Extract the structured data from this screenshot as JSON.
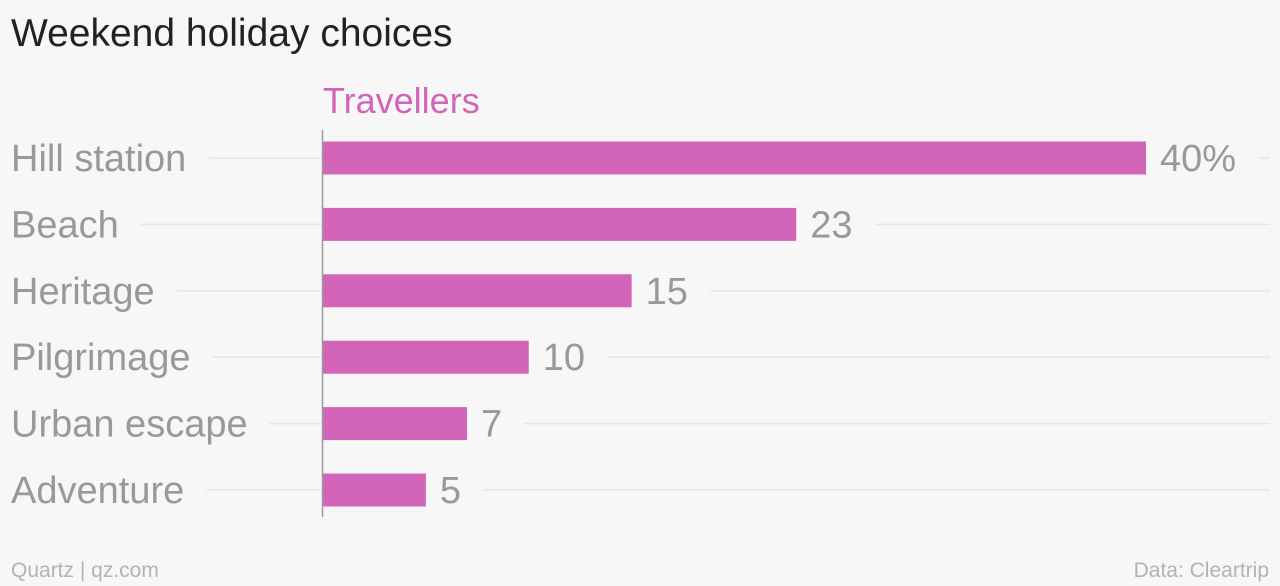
{
  "title": "Weekend holiday choices",
  "footer": {
    "source_left": "Quartz | qz.com",
    "source_right": "Data: Cleartrip"
  },
  "colors": {
    "bar": "#d365b9",
    "series_label": "#d365b9",
    "text_muted": "#999999",
    "gridline": "#e6e6e6",
    "axis": "#999999",
    "background": "#f7f7f7"
  },
  "chart_data": {
    "type": "bar",
    "orientation": "horizontal",
    "categories": [
      "Hill station",
      "Beach",
      "Heritage",
      "Pilgrimage",
      "Urban escape",
      "Adventure"
    ],
    "series": [
      {
        "name": "Travellers",
        "values": [
          40,
          23,
          15,
          10,
          7,
          5
        ]
      }
    ],
    "value_labels": [
      "40%",
      "23",
      "15",
      "10",
      "7",
      "5"
    ],
    "unit": "%",
    "xlim": [
      0,
      40
    ],
    "grid": true,
    "legend": "top"
  }
}
